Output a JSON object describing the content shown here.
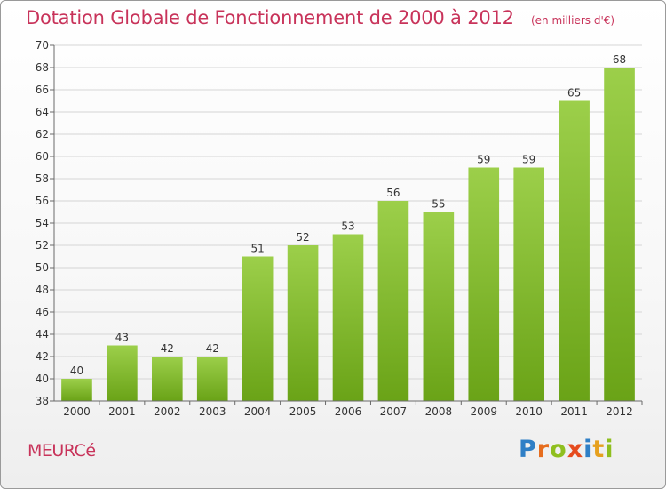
{
  "chart_title": "Dotation Globale de Fonctionnement de 2000 à 2012",
  "chart_subtitle": "(en milliers d'€)",
  "commune_name": "MEURCé",
  "logo": {
    "text": "Proxiti",
    "letter_colors": [
      "#2f7fc6",
      "#e66d1e",
      "#8fbf1f",
      "#e64b1e",
      "#2f7fc6",
      "#e6a01e",
      "#8fbf1f"
    ]
  },
  "colors": {
    "title": "#c8335a",
    "bar_light": "#9ccf4a",
    "bar_dark": "#6aa317",
    "grid": "#d5d5d5",
    "axis": "#6a6a6a",
    "label": "#333333"
  },
  "chart_data": {
    "type": "bar",
    "categories": [
      "2000",
      "2001",
      "2002",
      "2003",
      "2004",
      "2005",
      "2006",
      "2007",
      "2008",
      "2009",
      "2010",
      "2011",
      "2012"
    ],
    "values": [
      40,
      43,
      42,
      42,
      51,
      52,
      53,
      56,
      55,
      59,
      59,
      65,
      68
    ],
    "ylim": [
      38,
      70
    ],
    "yticks": [
      38,
      40,
      42,
      44,
      46,
      48,
      50,
      52,
      54,
      56,
      58,
      60,
      62,
      64,
      66,
      68,
      70
    ],
    "grid": true,
    "data_labels": true
  }
}
